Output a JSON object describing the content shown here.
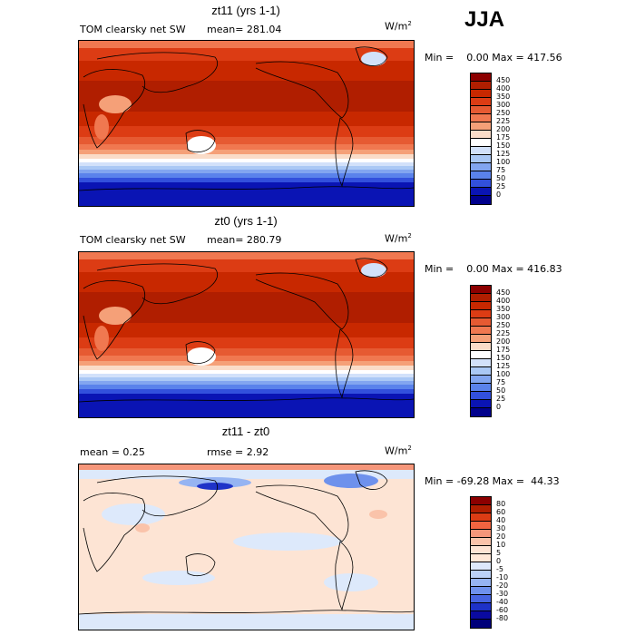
{
  "season": "JJA",
  "panels": [
    {
      "title": "zt11 (yrs 1-1)",
      "left_label": "TOM clearsky net SW",
      "center_label": "mean= 281.04",
      "unit": "W/m",
      "unit_exp": "2",
      "minmax": "Min =    0.00 Max = 417.56",
      "levels": [
        "450",
        "400",
        "350",
        "300",
        "250",
        "225",
        "200",
        "175",
        "150",
        "125",
        "100",
        "75",
        "50",
        "25",
        "0"
      ],
      "colors": [
        "#8c0000",
        "#b01e00",
        "#c82800",
        "#dc3c14",
        "#e65a32",
        "#f07850",
        "#f5a078",
        "#fadcc8",
        "#ffffff",
        "#d2e1fa",
        "#aac8f5",
        "#82a5f0",
        "#5a82eb",
        "#3250dc",
        "#0a14b4",
        "#00008c"
      ]
    },
    {
      "title": "zt0 (yrs 1-1)",
      "left_label": "TOM clearsky net SW",
      "center_label": "mean= 280.79",
      "unit": "W/m",
      "unit_exp": "2",
      "minmax": "Min =    0.00 Max = 416.83",
      "levels": [
        "450",
        "400",
        "350",
        "300",
        "250",
        "225",
        "200",
        "175",
        "150",
        "125",
        "100",
        "75",
        "50",
        "25",
        "0"
      ],
      "colors": [
        "#8c0000",
        "#b01e00",
        "#c82800",
        "#dc3c14",
        "#e65a32",
        "#f07850",
        "#f5a078",
        "#fadcc8",
        "#ffffff",
        "#d2e1fa",
        "#aac8f5",
        "#82a5f0",
        "#5a82eb",
        "#3250dc",
        "#0a14b4",
        "#00008c"
      ]
    },
    {
      "title": "zt11 - zt0",
      "left_label": "mean =    0.25",
      "center_label": "rmse =    2.92",
      "unit": "W/m",
      "unit_exp": "2",
      "minmax": "Min = -69.28 Max =  44.33",
      "levels": [
        "80",
        "60",
        "40",
        "30",
        "20",
        "10",
        "5",
        "0",
        "-5",
        "-10",
        "-20",
        "-30",
        "-40",
        "-60",
        "-80"
      ],
      "colors": [
        "#8c0000",
        "#b01e00",
        "#dc3c14",
        "#f06440",
        "#f5967a",
        "#fac3aa",
        "#fde4d4",
        "#ffe8d8",
        "#dde9fb",
        "#bcd2f8",
        "#96b4f2",
        "#6e91ec",
        "#4664e1",
        "#1e32c8",
        "#0a0aa0",
        "#00007a"
      ]
    }
  ]
}
